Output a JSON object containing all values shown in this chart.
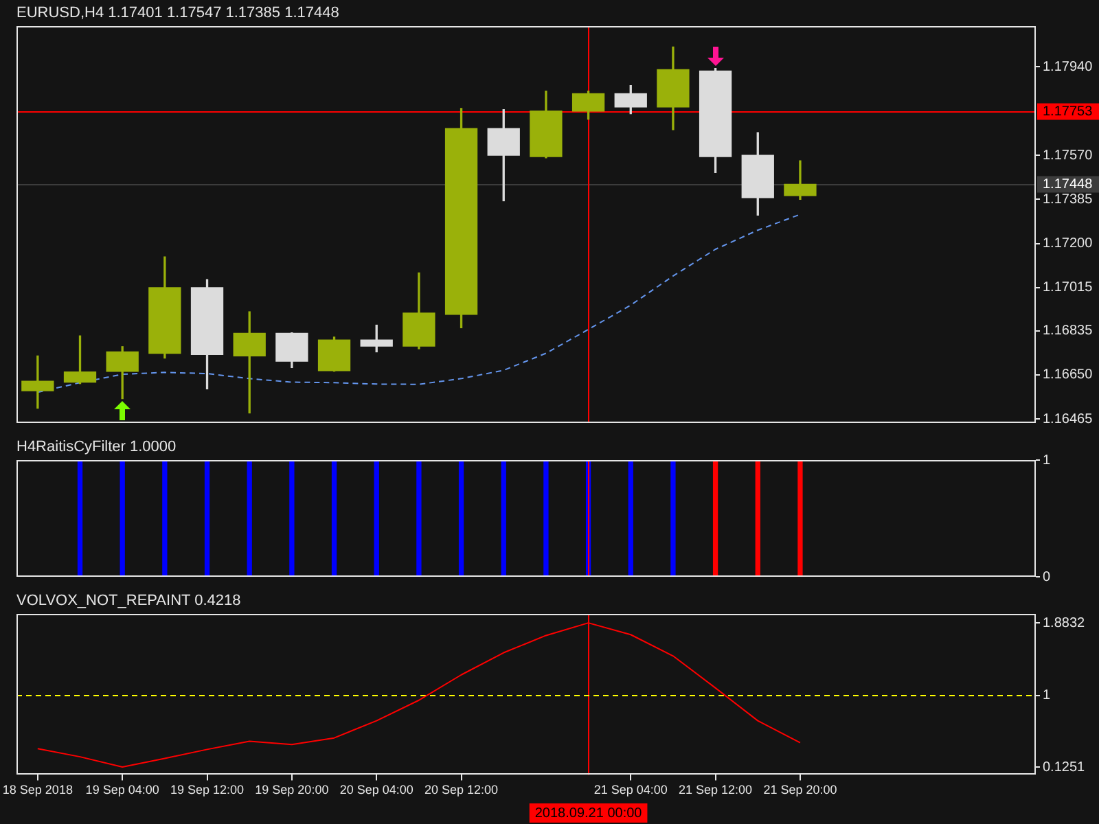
{
  "chart_data": [
    {
      "type": "candlestick",
      "title": "EURUSD,H4 1.17401 1.17547 1.17385 1.17448",
      "x": [
        "2018-09-18T20:00",
        "2018-09-19T00:00",
        "2018-09-19T04:00",
        "2018-09-19T08:00",
        "2018-09-19T12:00",
        "2018-09-19T16:00",
        "2018-09-19T20:00",
        "2018-09-20T00:00",
        "2018-09-20T04:00",
        "2018-09-20T08:00",
        "2018-09-20T12:00",
        "2018-09-20T16:00",
        "2018-09-20T20:00",
        "2018-09-21T00:00",
        "2018-09-21T04:00",
        "2018-09-21T08:00",
        "2018-09-21T12:00",
        "2018-09-21T16:00",
        "2018-09-21T20:00"
      ],
      "ohlc": [
        [
          1.16583,
          1.16729,
          1.1651,
          1.16623
        ],
        [
          1.16619,
          1.16813,
          1.16613,
          1.16662
        ],
        [
          1.16664,
          1.16768,
          1.1655,
          1.16746
        ],
        [
          1.1674,
          1.17144,
          1.1672,
          1.17015
        ],
        [
          1.17015,
          1.17049,
          1.16591,
          1.16735
        ],
        [
          1.16729,
          1.16914,
          1.1649,
          1.16824
        ],
        [
          1.16824,
          1.16826,
          1.1668,
          1.16707
        ],
        [
          1.16667,
          1.16808,
          1.16665,
          1.16796
        ],
        [
          1.16796,
          1.16858,
          1.16746,
          1.1677
        ],
        [
          1.1677,
          1.17077,
          1.16759,
          1.16909
        ],
        [
          1.16903,
          1.17766,
          1.16847,
          1.17682
        ],
        [
          1.17682,
          1.17761,
          1.17379,
          1.1757
        ],
        [
          1.17564,
          1.17839,
          1.17559,
          1.17755
        ],
        [
          1.17755,
          1.17839,
          1.17721,
          1.17828
        ],
        [
          1.17828,
          1.17862,
          1.17744,
          1.17772
        ],
        [
          1.17772,
          1.18024,
          1.17677,
          1.17929
        ],
        [
          1.17923,
          1.17934,
          1.17497,
          1.17564
        ],
        [
          1.1757,
          1.17665,
          1.17319,
          1.17392
        ],
        [
          1.17401,
          1.17547,
          1.17385,
          1.17448
        ]
      ],
      "colors": [
        "#9ab10a",
        "#9ab10a",
        "#9ab10a",
        "#9ab10a",
        "#dcdcdc",
        "#9ab10a",
        "#dcdcdc",
        "#9ab10a",
        "#dcdcdc",
        "#9ab10a",
        "#9ab10a",
        "#dcdcdc",
        "#9ab10a",
        "#9ab10a",
        "#dcdcdc",
        "#9ab10a",
        "#dcdcdc",
        "#dcdcdc",
        "#9ab10a"
      ],
      "series": [
        {
          "type": "line",
          "color": "#6495ed",
          "line_style": "dashed",
          "marker": "none",
          "values": [
            1.16577,
            1.16617,
            1.16652,
            1.1666,
            1.16655,
            1.16634,
            1.16619,
            1.16617,
            1.16611,
            1.1661,
            1.16634,
            1.16669,
            1.1674,
            1.1684,
            1.16942,
            1.17064,
            1.17176,
            1.17256,
            1.17322
          ]
        }
      ],
      "xlim": [
        "2018-09-18T18:00",
        "2018-09-22T18:15"
      ],
      "ylim": [
        1.16448,
        1.1811
      ],
      "yticks": [
        {
          "value": 1.1794,
          "label": "1.17940"
        },
        {
          "value": 1.1757,
          "label": "1.17570"
        },
        1.17385,
        {
          "value": 1.172,
          "label": "1.17200"
        },
        1.17015,
        1.16835,
        {
          "value": 1.1665,
          "label": "1.16650"
        },
        1.16465
      ],
      "ref_lines": [
        {
          "axis": "y",
          "value": 1.17753,
          "label": "1.17753",
          "color": "#ff0000"
        },
        {
          "axis": "y",
          "value": 1.17448,
          "label": "1.17448",
          "color": "#3c3c3c"
        },
        {
          "axis": "x",
          "value": "2018-09-21T00:00",
          "color": "#ff0000"
        }
      ],
      "grid": false,
      "legend": false,
      "tick_labels": "y"
    },
    {
      "type": "bar",
      "title": "H4RaitisCyFilter 1.0000",
      "x": [
        "2018-09-19T00:00",
        "2018-09-19T04:00",
        "2018-09-19T08:00",
        "2018-09-19T12:00",
        "2018-09-19T16:00",
        "2018-09-19T20:00",
        "2018-09-20T00:00",
        "2018-09-20T04:00",
        "2018-09-20T08:00",
        "2018-09-20T12:00",
        "2018-09-20T16:00",
        "2018-09-20T20:00",
        "2018-09-21T00:00",
        "2018-09-21T04:00",
        "2018-09-21T08:00",
        "2018-09-21T12:00",
        "2018-09-21T16:00",
        "2018-09-21T20:00"
      ],
      "values": [
        1,
        1,
        1,
        1,
        1,
        1,
        1,
        1,
        1,
        1,
        1,
        1,
        1,
        1,
        1,
        1,
        1,
        1
      ],
      "colors": [
        "#0000ff",
        "#0000ff",
        "#0000ff",
        "#0000ff",
        "#0000ff",
        "#0000ff",
        "#0000ff",
        "#0000ff",
        "#0000ff",
        "#0000ff",
        "#0000ff",
        "#0000ff",
        "#0000ff",
        "#0000ff",
        "#0000ff",
        "#ff0000",
        "#ff0000",
        "#ff0000"
      ],
      "xlim": [
        "2018-09-18T18:00",
        "2018-09-22T18:15"
      ],
      "ylim": [
        0,
        1
      ],
      "yticks": [
        0,
        1
      ],
      "ref_lines": [
        {
          "axis": "x",
          "value": "2018-09-21T00:00",
          "color": "#ff0000"
        }
      ],
      "grid": false,
      "legend": false,
      "tick_labels": "y"
    },
    {
      "type": "line",
      "title": "VOLVOX_NOT_REPAINT 0.4218",
      "x": [
        "2018-09-18T20:00",
        "2018-09-19T00:00",
        "2018-09-19T04:00",
        "2018-09-19T08:00",
        "2018-09-19T12:00",
        "2018-09-19T16:00",
        "2018-09-19T20:00",
        "2018-09-20T00:00",
        "2018-09-20T04:00",
        "2018-09-20T08:00",
        "2018-09-20T12:00",
        "2018-09-20T16:00",
        "2018-09-20T20:00",
        "2018-09-21T00:00",
        "2018-09-21T04:00",
        "2018-09-21T08:00",
        "2018-09-21T12:00",
        "2018-09-21T16:00",
        "2018-09-21T20:00"
      ],
      "values": [
        0.35,
        0.25,
        0.1251,
        0.23,
        0.34,
        0.44,
        0.4,
        0.48,
        0.69,
        0.94,
        1.25,
        1.52,
        1.73,
        1.8832,
        1.74,
        1.48,
        1.09,
        0.69,
        0.4218
      ],
      "color": "#ff0000",
      "marker": "none",
      "xlim": [
        "2018-09-18T18:00",
        "2018-09-22T18:15"
      ],
      "xticks": [
        {
          "value": "2018-09-18T20:00",
          "label": "18 Sep 2018"
        },
        {
          "value": "2018-09-19T04:00",
          "label": "19 Sep 04:00"
        },
        {
          "value": "2018-09-19T12:00",
          "label": "19 Sep 12:00"
        },
        {
          "value": "2018-09-19T20:00",
          "label": "19 Sep 20:00"
        },
        {
          "value": "2018-09-20T04:00",
          "label": "20 Sep 04:00"
        },
        {
          "value": "2018-09-20T12:00",
          "label": "20 Sep 12:00"
        },
        {
          "value": "2018-09-21T04:00",
          "label": "21 Sep 04:00"
        },
        {
          "value": "2018-09-21T12:00",
          "label": "21 Sep 12:00"
        },
        {
          "value": "2018-09-21T20:00",
          "label": "21 Sep 20:00"
        }
      ],
      "ylim": [
        0.03,
        1.99
      ],
      "yticks": [
        0.1251,
        1,
        1.8832
      ],
      "ref_lines": [
        {
          "axis": "x",
          "value": "2018-09-21T00:00",
          "label": "2018.09.21 00:00",
          "color": "#ff0000"
        },
        {
          "axis": "y",
          "value": 1,
          "color": "#ffff00",
          "line_style": "dashed"
        }
      ],
      "grid": false,
      "legend": false
    }
  ]
}
